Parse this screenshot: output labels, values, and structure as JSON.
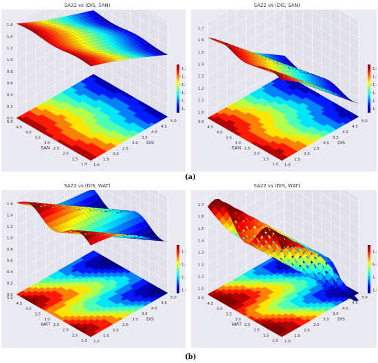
{
  "captions": {
    "a": "(a)",
    "b": "(b)"
  },
  "chart_data": [
    {
      "type": "surface3d",
      "title": "SA22 vs (DIS, SAN)",
      "xlabel": "DIS",
      "ylabel": "SAN",
      "x_ticks": [
        "1.0",
        "1.5",
        "2.0",
        "2.5",
        "3.0",
        "3.5",
        "4.0",
        "4.5",
        "5.0"
      ],
      "y_ticks": [
        "1.0",
        "1.5",
        "2.0",
        "2.5",
        "3.0",
        "3.5",
        "4.0",
        "4.5",
        "5.0"
      ],
      "z_ticks": [
        "0.0",
        "0.2",
        "0.4",
        "0.6",
        "0.8",
        "1.0",
        "1.2",
        "1.4",
        "1.6"
      ],
      "zlim": [
        0.0,
        1.65
      ],
      "colorbar_ticks": [
        "1.1",
        "1.2",
        "1.3",
        "1.4",
        "1.5",
        "1.6"
      ],
      "colorbar_range": [
        1.05,
        1.65
      ],
      "surface": {
        "z_at_dis1": 1.62,
        "z_at_dis5": 1.08,
        "wave_amp": 0.02
      }
    },
    {
      "type": "surface3d",
      "title": "SA22 vs (DIS, SAN)",
      "xlabel": "DIS",
      "ylabel": "SAN",
      "x_ticks": [
        "1.0",
        "1.5",
        "2.0",
        "2.5",
        "3.0",
        "3.5",
        "4.0",
        "4.5",
        "5.0"
      ],
      "y_ticks": [
        "1.0",
        "1.5",
        "2.0",
        "2.5",
        "3.0",
        "3.5",
        "4.0",
        "4.5",
        "5.0"
      ],
      "z_ticks": [
        "1.0",
        "1.1",
        "1.2",
        "1.3",
        "1.4",
        "1.5",
        "1.6",
        "1.7"
      ],
      "zlim": [
        0.95,
        1.75
      ],
      "colorbar_ticks": [
        "1.1",
        "1.2",
        "1.3",
        "1.4",
        "1.5",
        "1.6"
      ],
      "colorbar_range": [
        1.05,
        1.65
      ],
      "surface": {
        "z_at_dis1": 1.62,
        "z_at_dis5": 1.08,
        "wave_amp": 0.03
      }
    },
    {
      "type": "surface3d",
      "title": "SA22 vs (DIS, WAT)",
      "xlabel": "DIS",
      "ylabel": "WAT",
      "x_ticks": [
        "1.0",
        "1.5",
        "2.0",
        "2.5",
        "3.0",
        "3.5",
        "4.0",
        "4.5",
        "5.0"
      ],
      "y_ticks": [
        "1.0",
        "1.5",
        "2.0",
        "2.5",
        "3.0",
        "3.5",
        "4.0",
        "4.5",
        "5.0"
      ],
      "z_ticks": [
        "0.0",
        "0.2",
        "0.4",
        "0.6",
        "0.8",
        "1.0",
        "1.2",
        "1.4",
        "1.6"
      ],
      "zlim": [
        0.0,
        1.7
      ],
      "colorbar_ticks": [
        "1.0",
        "1.2",
        "1.4",
        "1.6"
      ],
      "colorbar_range": [
        0.95,
        1.7
      ],
      "surface": {
        "z_at_dis1": 1.62,
        "z_at_dis5": 1.0,
        "wave_amp": 0.12
      }
    },
    {
      "type": "surface3d",
      "title": "SA22 vs (DIS, WAT)",
      "xlabel": "DIS",
      "ylabel": "WAT",
      "x_ticks": [
        "1.0",
        "1.5",
        "2.0",
        "2.5",
        "3.0",
        "3.5",
        "4.0",
        "4.5",
        "5.0"
      ],
      "y_ticks": [
        "1.0",
        "1.5",
        "2.0",
        "2.5",
        "3.0",
        "3.5",
        "4.0",
        "4.5",
        "5.0"
      ],
      "z_ticks": [
        "1.0",
        "1.1",
        "1.2",
        "1.3",
        "1.4",
        "1.5",
        "1.6",
        "1.7"
      ],
      "zlim": [
        0.95,
        1.75
      ],
      "colorbar_ticks": [
        "1.0",
        "1.2",
        "1.4",
        "1.6"
      ],
      "colorbar_range": [
        0.95,
        1.7
      ],
      "surface": {
        "z_at_dis1": 1.68,
        "z_at_dis5": 0.98,
        "wave_amp": 0.12
      }
    }
  ]
}
